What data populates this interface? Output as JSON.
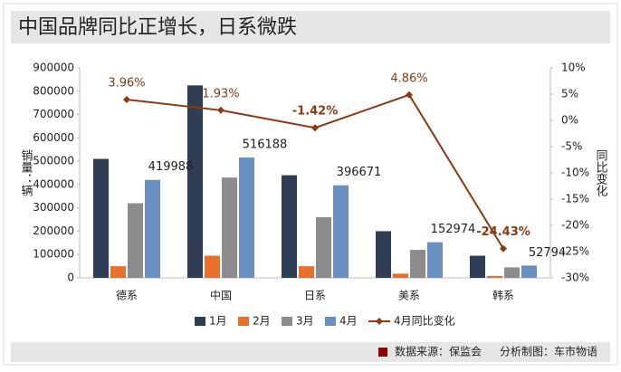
{
  "chart_data": {
    "type": "bar_line",
    "title": "中国品牌同比正增长，日系微跌",
    "y_label": "销量：辆",
    "y2_label": "同比变化",
    "source": "数据来源：保监会",
    "credit": "分析制图：车市物语",
    "categories": [
      "德系",
      "中国",
      "日系",
      "美系",
      "韩系"
    ],
    "ylim": [
      0,
      900000
    ],
    "yticks": [
      0,
      100000,
      200000,
      300000,
      400000,
      500000,
      600000,
      700000,
      800000,
      900000
    ],
    "y2lim": [
      -30,
      10
    ],
    "y2ticks": [
      {
        "value": 10,
        "label": "10%"
      },
      {
        "value": 5,
        "label": "5%"
      },
      {
        "value": 0,
        "label": "0%"
      },
      {
        "value": -5,
        "label": "-5%"
      },
      {
        "value": -10,
        "label": "-10%"
      },
      {
        "value": -15,
        "label": "-15%"
      },
      {
        "value": -20,
        "label": "-20%"
      },
      {
        "value": -25,
        "label": "-25%"
      },
      {
        "value": -30,
        "label": "-30%"
      }
    ],
    "series": [
      {
        "name": "1月",
        "color": "#2f3e54",
        "type": "bar",
        "values": [
          510000,
          825000,
          440000,
          200000,
          95000
        ]
      },
      {
        "name": "2月",
        "color": "#e8702a",
        "type": "bar",
        "values": [
          50000,
          95000,
          50000,
          18000,
          8000
        ]
      },
      {
        "name": "3月",
        "color": "#8c8c8c",
        "type": "bar",
        "values": [
          320000,
          430000,
          260000,
          120000,
          45000
        ]
      },
      {
        "name": "4月",
        "color": "#6a8fc0",
        "type": "bar",
        "data_labels": true,
        "values": [
          419988,
          516188,
          396671,
          152974,
          52794
        ]
      },
      {
        "name": "4月同比变化",
        "color": "#8b3a12",
        "type": "line",
        "axis": "y2",
        "data_labels": true,
        "values": [
          3.96,
          1.93,
          -1.42,
          4.86,
          -24.43
        ],
        "value_labels": [
          "3.96%",
          "1.93%",
          "-1.42%",
          "4.86%",
          "-24.43%"
        ]
      }
    ]
  }
}
